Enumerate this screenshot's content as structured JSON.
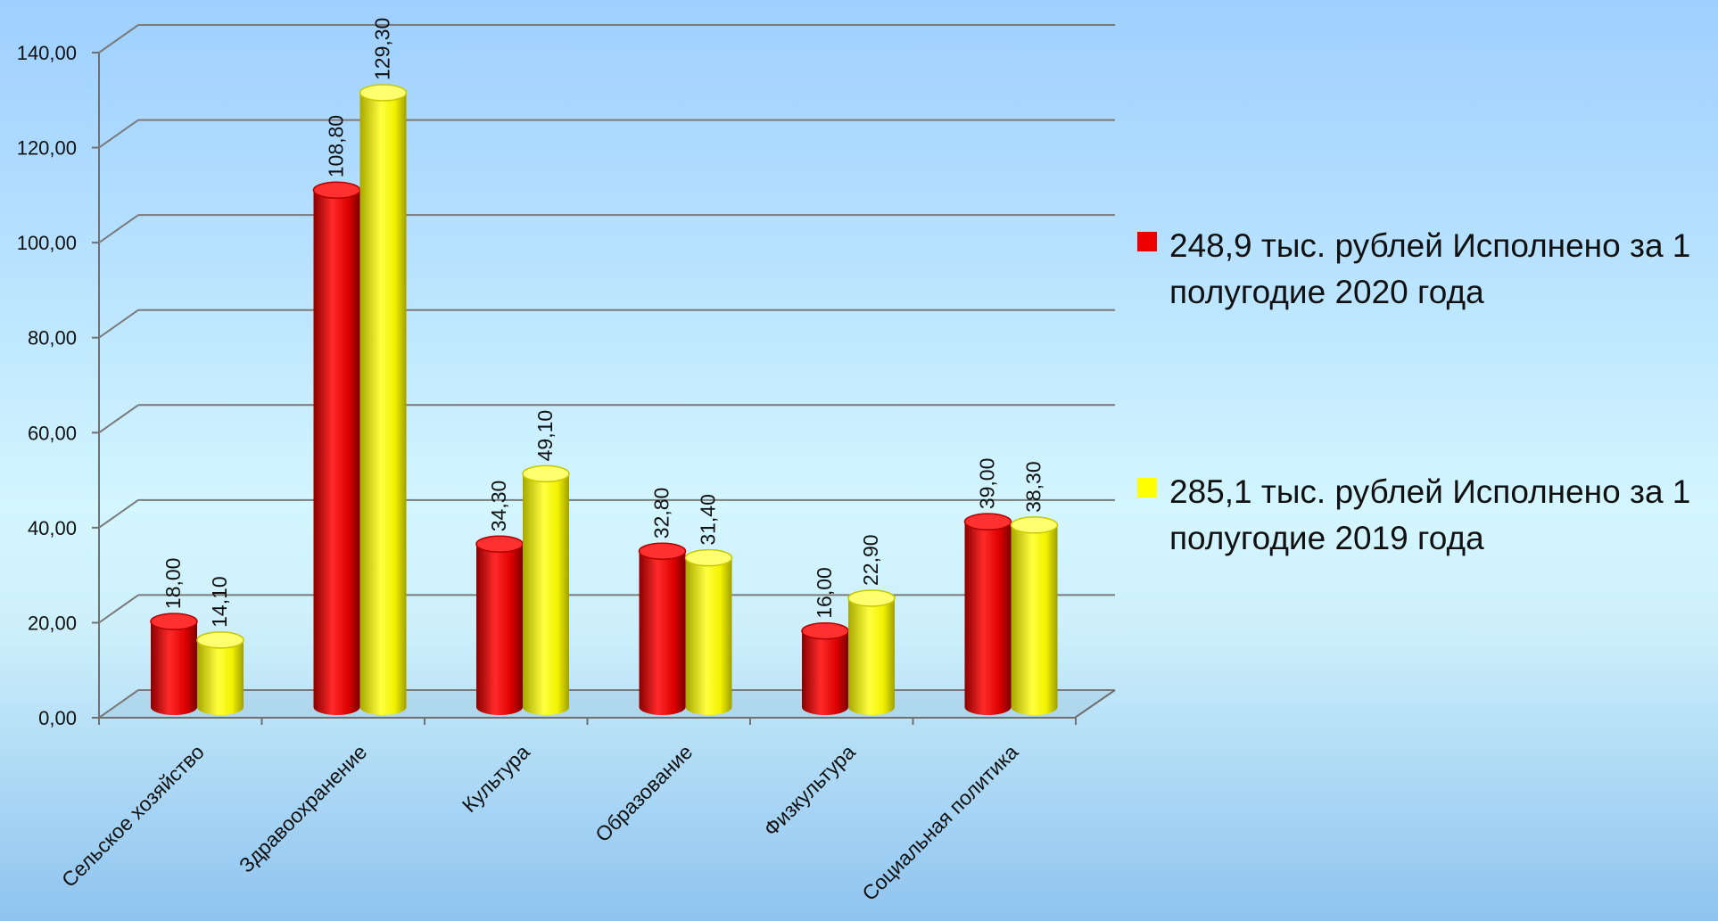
{
  "chart_data": {
    "type": "bar",
    "style": "3d-cylinder",
    "categories": [
      "Сельское хозяйство",
      "Здравоохранение",
      "Культура",
      "Образование",
      "Физкультура",
      "Социальная политика"
    ],
    "series": [
      {
        "name": "248,9 тыс. рублей Исполнено за 1 полугодие 2020 года",
        "values": [
          18.0,
          108.8,
          34.3,
          32.8,
          16.0,
          39.0
        ],
        "labels": [
          "18,00",
          "108,80",
          "34,30",
          "32,80",
          "16,00",
          "39,00"
        ],
        "color": "#ee0000"
      },
      {
        "name": "285,1 тыс. рублей Исполнено за 1 полугодие 2019 года",
        "values": [
          14.1,
          129.3,
          49.1,
          31.4,
          22.9,
          38.3
        ],
        "labels": [
          "14,10",
          "129,30",
          "49,10",
          "31,40",
          "22,90",
          "38,30"
        ],
        "color": "#ffff00"
      }
    ],
    "y_ticks": [
      "0,00",
      "20,00",
      "40,00",
      "60,00",
      "80,00",
      "100,00",
      "120,00",
      "140,00"
    ],
    "ylim": [
      0,
      140
    ],
    "grid": true,
    "legend_position": "right"
  }
}
